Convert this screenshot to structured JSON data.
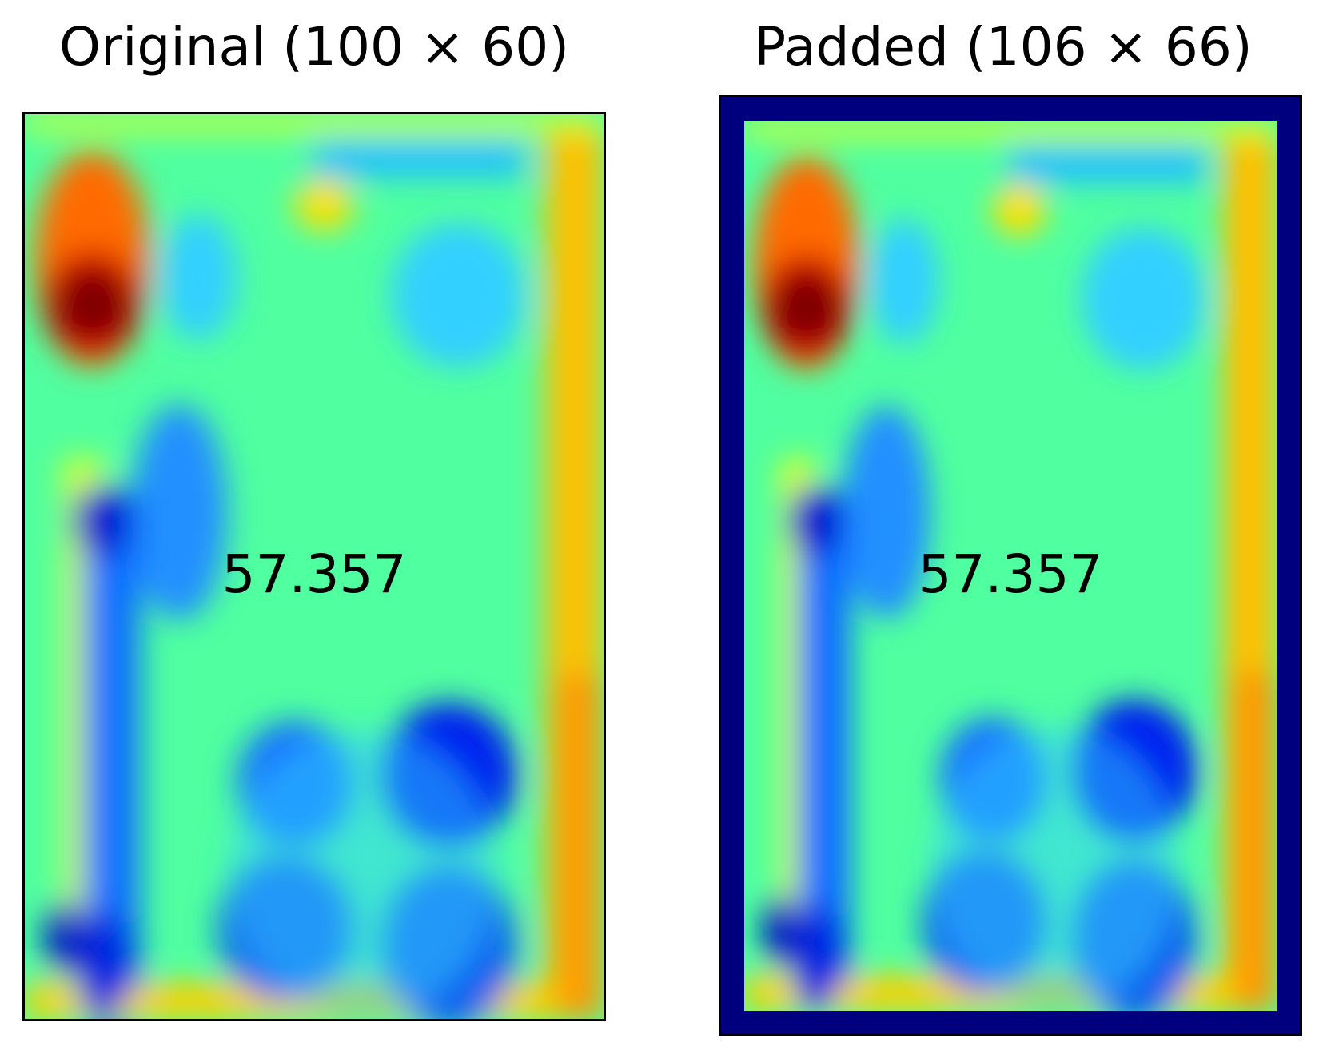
{
  "panels": [
    {
      "title": "Original (100 × 60)",
      "value": "57.357",
      "padded": false
    },
    {
      "title": "Padded (106 × 66)",
      "value": "57.357",
      "padded": true
    }
  ],
  "colors": {
    "pad": "#00007f",
    "background": "#50ffa0",
    "colormap": "jet"
  }
}
